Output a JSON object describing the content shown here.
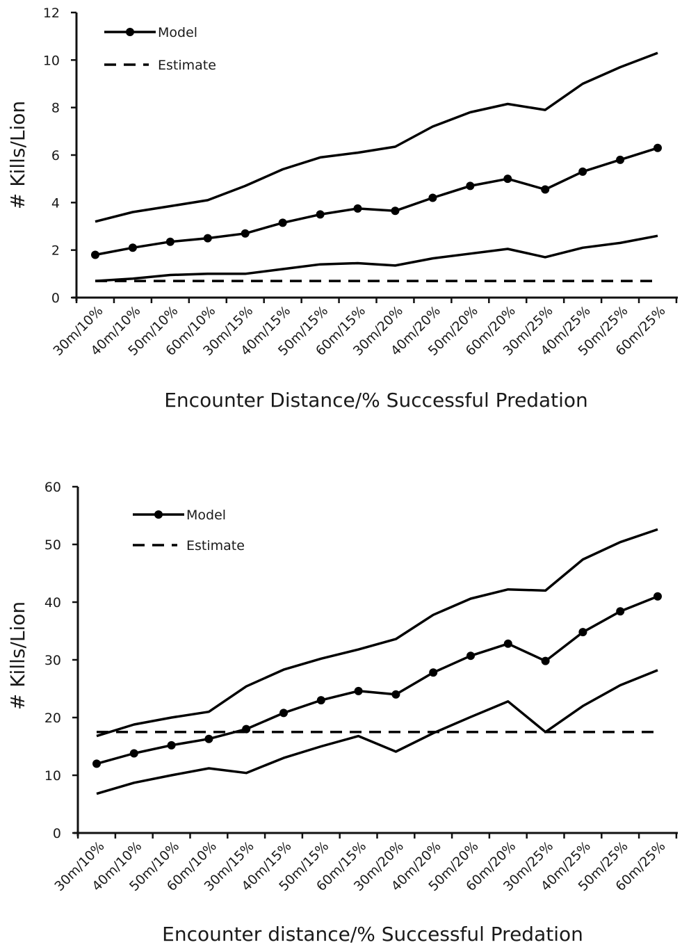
{
  "chart_data": [
    {
      "type": "line",
      "xlabel": "Encounter Distance/% Successful Predation",
      "ylabel": "# Kills/Lion",
      "ylim": [
        0,
        12
      ],
      "yticks": [
        "0",
        "2",
        "4",
        "6",
        "8",
        "10",
        "12"
      ],
      "categories": [
        "30m/10%",
        "40m/10%",
        "50m/10%",
        "60m/10%",
        "30m/15%",
        "40m/15%",
        "50m/15%",
        "60m/15%",
        "30m/20%",
        "40m/20%",
        "50m/20%",
        "60m/20%",
        "30m/25%",
        "40m/25%",
        "50m/25%",
        "60m/25%"
      ],
      "legend": {
        "position": "top-left",
        "entries": [
          "Model",
          "Estimate"
        ]
      },
      "series": [
        {
          "name": "Model",
          "style": "solid-markers",
          "values": [
            1.8,
            2.1,
            2.35,
            2.5,
            2.7,
            3.15,
            3.5,
            3.75,
            3.65,
            4.2,
            4.7,
            5.0,
            4.55,
            5.3,
            5.8,
            6.3
          ]
        },
        {
          "style": "solid",
          "values": [
            3.2,
            3.6,
            3.85,
            4.1,
            4.7,
            5.4,
            5.9,
            6.1,
            6.35,
            7.2,
            7.8,
            8.15,
            7.9,
            9.0,
            9.7,
            10.3
          ]
        },
        {
          "style": "solid",
          "values": [
            0.7,
            0.8,
            0.95,
            1.0,
            1.0,
            1.2,
            1.4,
            1.45,
            1.35,
            1.65,
            1.85,
            2.05,
            1.7,
            2.1,
            2.3,
            2.6
          ]
        },
        {
          "name": "Estimate",
          "style": "dashed",
          "values": [
            0.7,
            0.7,
            0.7,
            0.7,
            0.7,
            0.7,
            0.7,
            0.7,
            0.7,
            0.7,
            0.7,
            0.7,
            0.7,
            0.7,
            0.7,
            0.7
          ]
        }
      ]
    },
    {
      "type": "line",
      "xlabel": "Encounter distance/% Successful Predation",
      "ylabel": "# Kills/Lion",
      "ylim": [
        0,
        60
      ],
      "yticks": [
        "0",
        "10",
        "20",
        "30",
        "40",
        "50",
        "60"
      ],
      "categories": [
        "30m/10%",
        "40m/10%",
        "50m/10%",
        "60m/10%",
        "30m/15%",
        "40m/15%",
        "50m/15%",
        "60m/15%",
        "30m/20%",
        "40m/20%",
        "50m/20%",
        "60m/20%",
        "30m/25%",
        "40m/25%",
        "50m/25%",
        "60m/25%"
      ],
      "legend": {
        "position": "top-left",
        "entries": [
          "Model",
          "Estimate"
        ]
      },
      "series": [
        {
          "name": "Model",
          "style": "solid-markers",
          "values": [
            12,
            13.8,
            15.2,
            16.3,
            18,
            20.8,
            23,
            24.6,
            24,
            27.8,
            30.7,
            32.8,
            29.8,
            34.8,
            38.4,
            41
          ]
        },
        {
          "style": "solid",
          "values": [
            16.8,
            18.8,
            20,
            21,
            25.4,
            28.3,
            30.2,
            31.8,
            33.6,
            37.8,
            40.6,
            42.2,
            42,
            47.4,
            50.4,
            52.6
          ]
        },
        {
          "style": "solid",
          "values": [
            6.8,
            8.7,
            10,
            11.2,
            10.4,
            13,
            15,
            16.8,
            14.1,
            17.3,
            20.1,
            22.8,
            17.5,
            22,
            25.6,
            28.2
          ]
        },
        {
          "name": "Estimate",
          "style": "dashed",
          "values": [
            17.5,
            17.5,
            17.5,
            17.5,
            17.5,
            17.5,
            17.5,
            17.5,
            17.5,
            17.5,
            17.5,
            17.5,
            17.5,
            17.5,
            17.5,
            17.5
          ]
        }
      ]
    }
  ]
}
